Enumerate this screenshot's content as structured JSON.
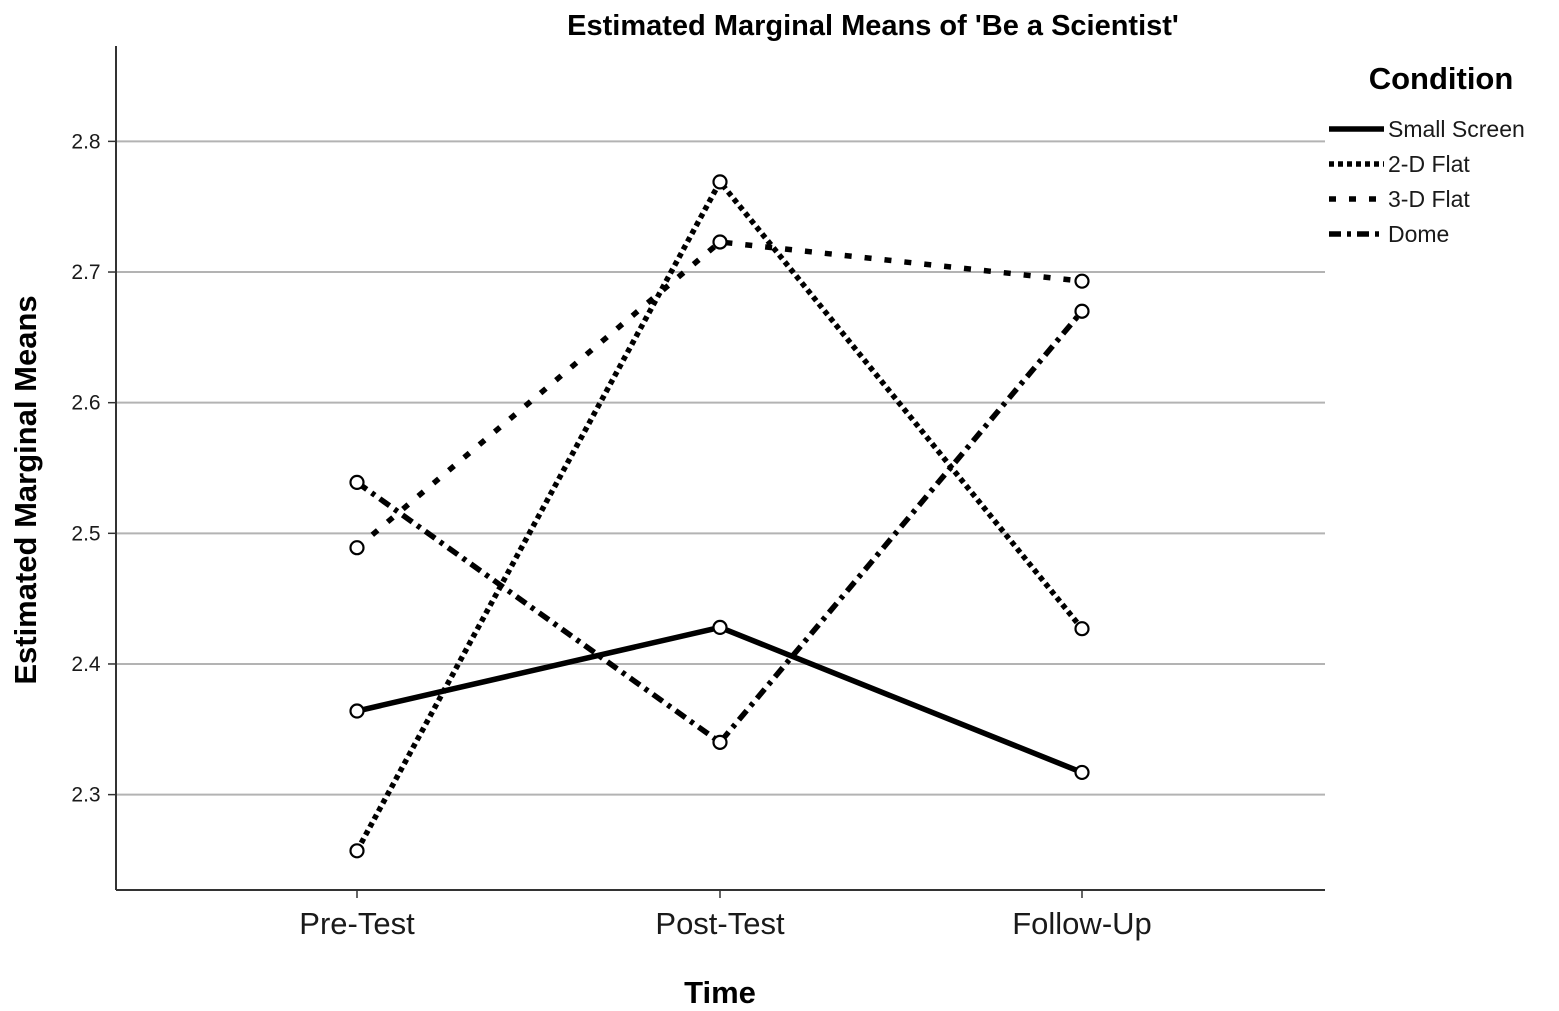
{
  "chart_data": {
    "type": "line",
    "title": "Estimated Marginal Means of 'Be a Scientist'",
    "xlabel": "Time",
    "ylabel": "Estimated Marginal Means",
    "categories": [
      "Pre-Test",
      "Post-Test",
      "Follow-Up"
    ],
    "ylim": [
      2.227,
      2.873
    ],
    "yticks": [
      "2.3",
      "2.4",
      "2.5",
      "2.6",
      "2.7",
      "2.8"
    ],
    "grid": "horizontal",
    "legend": {
      "title": "Condition",
      "placement": "top-right"
    },
    "series": [
      {
        "name": "Small Screen",
        "style": "solid",
        "values": [
          2.364,
          2.428,
          2.317
        ]
      },
      {
        "name": "2-D Flat",
        "style": "dotted",
        "values": [
          2.257,
          2.769,
          2.427
        ]
      },
      {
        "name": "3-D Flat",
        "style": "dashed",
        "values": [
          2.489,
          2.723,
          2.693
        ]
      },
      {
        "name": "Dome",
        "style": "dashdot",
        "values": [
          2.539,
          2.34,
          2.67
        ]
      }
    ],
    "colors": {
      "line": "#000000",
      "grid": "#b3b3b3",
      "axis": "#333333"
    }
  }
}
